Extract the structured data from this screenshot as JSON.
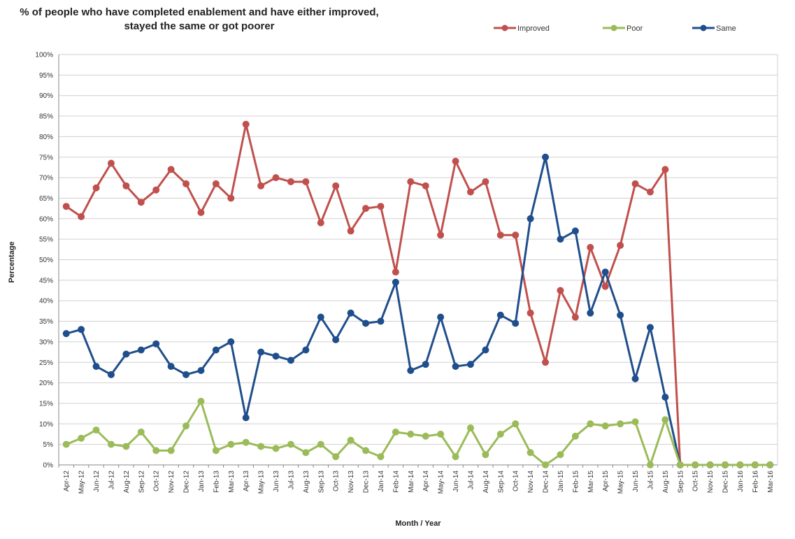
{
  "chart_data": {
    "type": "line",
    "title": "% of people who have completed enablement and have either improved, stayed the same or got poorer",
    "xlabel": "Month / Year",
    "ylabel": "Percentage",
    "ylim": [
      0,
      100
    ],
    "y_ticks": [
      "0%",
      "5%",
      "10%",
      "15%",
      "20%",
      "25%",
      "30%",
      "35%",
      "40%",
      "45%",
      "50%",
      "55%",
      "60%",
      "65%",
      "70%",
      "75%",
      "80%",
      "85%",
      "90%",
      "95%",
      "100%"
    ],
    "grid": true,
    "legend_position": "top-right",
    "categories": [
      "Apr-12",
      "May-12",
      "Jun-12",
      "Jul-12",
      "Aug-12",
      "Sep-12",
      "Oct-12",
      "Nov-12",
      "Dec-12",
      "Jan-13",
      "Feb-13",
      "Mar-13",
      "Apr-13",
      "May-13",
      "Jun-13",
      "Jul-13",
      "Aug-13",
      "Sep-13",
      "Oct-13",
      "Nov-13",
      "Dec-13",
      "Jan-14",
      "Feb-14",
      "Mar-14",
      "Apr-14",
      "May-14",
      "Jun-14",
      "Jul-14",
      "Aug-14",
      "Sep-14",
      "Oct-14",
      "Nov-14",
      "Dec-14",
      "Jan-15",
      "Feb-15",
      "Mar-15",
      "Apr-15",
      "May-15",
      "Jun-15",
      "Jul-15",
      "Aug-15",
      "Sep-15",
      "Oct-15",
      "Nov-15",
      "Dec-15",
      "Jan-16",
      "Feb-16",
      "Mar-16"
    ],
    "series": [
      {
        "name": "Improved",
        "color": "#c0504d",
        "values": [
          63,
          60.5,
          67.5,
          73.5,
          68,
          64,
          67,
          72,
          68.5,
          61.5,
          68.5,
          65,
          83,
          68,
          70,
          69,
          69,
          59,
          68,
          57,
          62.5,
          63,
          47,
          69,
          68,
          56,
          74,
          66.5,
          69,
          56,
          56,
          37,
          25,
          42.5,
          36,
          53,
          43.5,
          53.5,
          68.5,
          66.5,
          72,
          0,
          0,
          0,
          0,
          0,
          0,
          0
        ]
      },
      {
        "name": "Poor",
        "color": "#9bbb59",
        "values": [
          5,
          6.5,
          8.5,
          5,
          4.5,
          8,
          3.5,
          3.5,
          9.5,
          15.5,
          3.5,
          5,
          5.5,
          4.5,
          4,
          5,
          3,
          5,
          2,
          6,
          3.5,
          2,
          8,
          7.5,
          7,
          7.5,
          2,
          9,
          2.5,
          7.5,
          10,
          3,
          0,
          2.5,
          7,
          10,
          9.5,
          10,
          10.5,
          0,
          11,
          0,
          0,
          0,
          0,
          0,
          0,
          0
        ]
      },
      {
        "name": "Same",
        "color": "#1f4e8c",
        "values": [
          32,
          33,
          24,
          22,
          27,
          28,
          29.5,
          24,
          22,
          23,
          28,
          30,
          11.5,
          27.5,
          26.5,
          25.5,
          28,
          36,
          30.5,
          37,
          34.5,
          35,
          44.5,
          23,
          24.5,
          36,
          24,
          24.5,
          28,
          36.5,
          34.5,
          60,
          75,
          55,
          57,
          37,
          47,
          36.5,
          21,
          33.5,
          16.5,
          0,
          0,
          0,
          0,
          0,
          0,
          0
        ]
      }
    ]
  }
}
